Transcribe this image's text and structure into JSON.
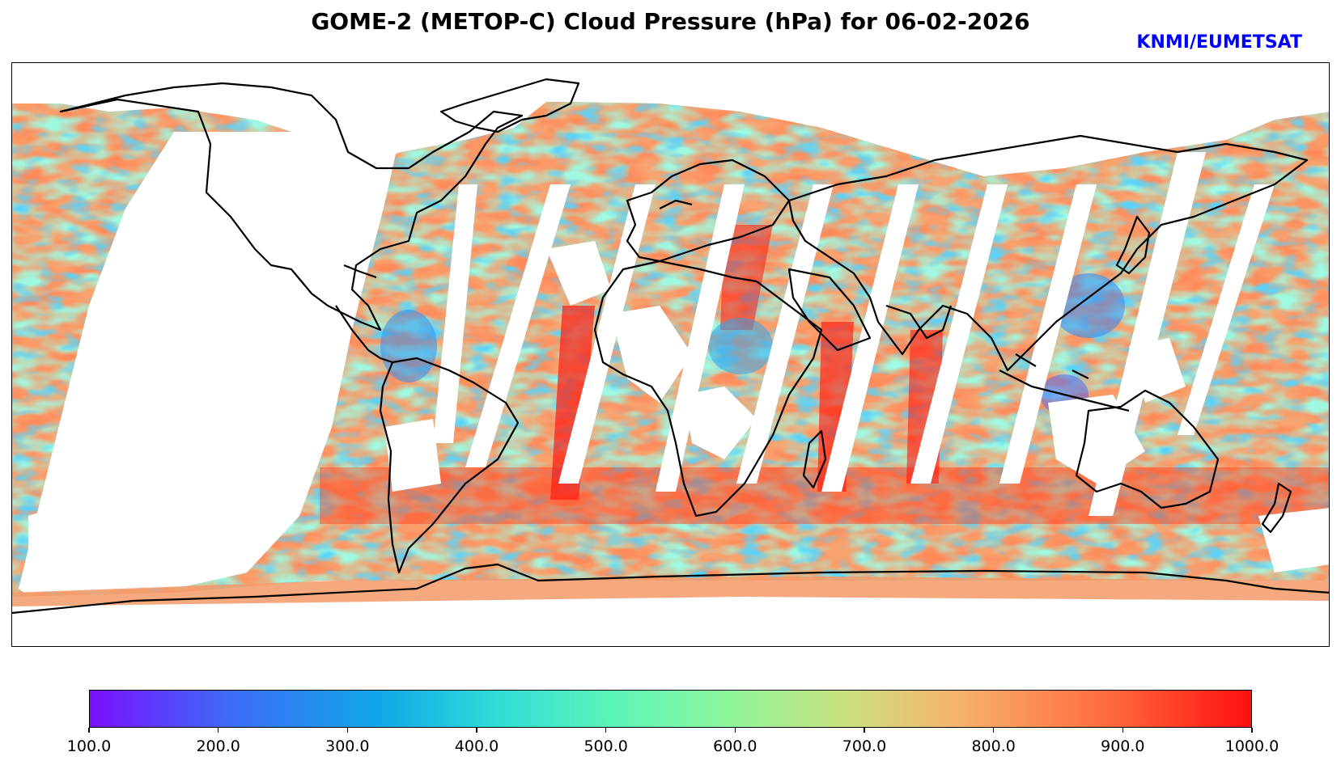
{
  "title": "GOME-2 (METOP-C) Cloud Pressure (hPa) for 06-02-2026",
  "credit": "KNMI/EUMETSAT",
  "variable": "Cloud Pressure",
  "units": "hPa",
  "colorbar": {
    "min": 100.0,
    "max": 1000.0,
    "colormap": "rainbow",
    "ticks": [
      "100.0",
      "200.0",
      "300.0",
      "400.0",
      "500.0",
      "600.0",
      "700.0",
      "800.0",
      "900.0",
      "1000.0"
    ]
  },
  "colors": {
    "credit": "#0000ff",
    "coastline": "#000000",
    "low": "#7b0fff",
    "high": "#ff0f0f"
  }
}
